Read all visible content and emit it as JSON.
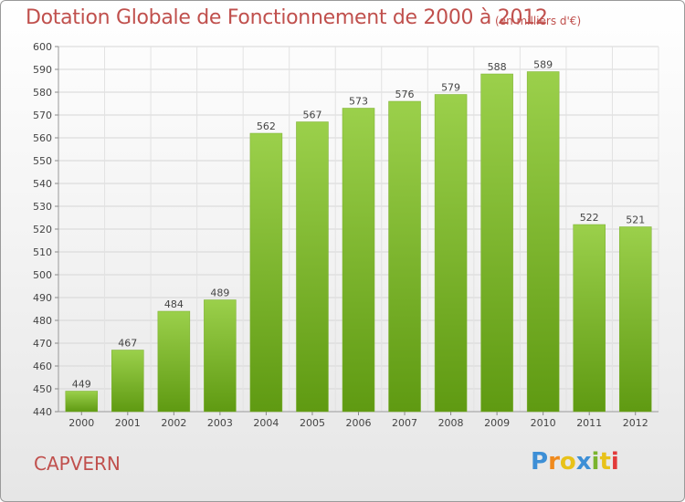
{
  "header": {
    "title": "Dotation Globale de Fonctionnement de 2000 à 2012",
    "subtitle": "(en milliers d'€)"
  },
  "commune": "CAPVERN",
  "logo": {
    "text": "Proxiti",
    "colors": [
      "#3d8fd6",
      "#f08a1d",
      "#e8c21a",
      "#3d8fd6",
      "#7ab42e",
      "#e8c21a",
      "#e23a3a"
    ]
  },
  "colors": {
    "bar_top": "#9bd04b",
    "bar_bottom": "#5f9a12",
    "accent": "#c0504d"
  },
  "chart_data": {
    "type": "bar",
    "categories": [
      "2000",
      "2001",
      "2002",
      "2003",
      "2004",
      "2005",
      "2006",
      "2007",
      "2008",
      "2009",
      "2010",
      "2011",
      "2012"
    ],
    "values": [
      449,
      467,
      484,
      489,
      562,
      567,
      573,
      576,
      579,
      588,
      589,
      522,
      521
    ],
    "ylim": [
      440,
      600
    ],
    "yticks": [
      440,
      450,
      460,
      470,
      480,
      490,
      500,
      510,
      520,
      530,
      540,
      550,
      560,
      570,
      580,
      590,
      600
    ],
    "grid": true
  }
}
